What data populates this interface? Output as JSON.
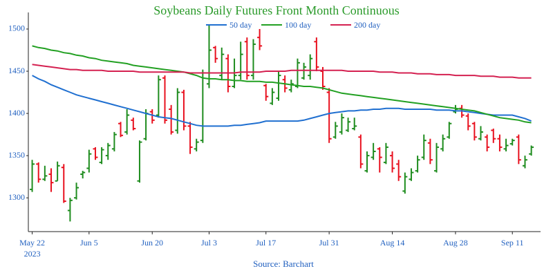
{
  "chart_data": {
    "type": "ohlc",
    "title": "Soybeans Daily Futures Front Month Continuous",
    "source": "Source: Barchart",
    "x": [
      "2023-05-22",
      "2023-05-23",
      "2023-05-24",
      "2023-05-25",
      "2023-05-26",
      "2023-05-30",
      "2023-05-31",
      "2023-06-01",
      "2023-06-02",
      "2023-06-05",
      "2023-06-06",
      "2023-06-07",
      "2023-06-08",
      "2023-06-09",
      "2023-06-12",
      "2023-06-13",
      "2023-06-14",
      "2023-06-15",
      "2023-06-16",
      "2023-06-20",
      "2023-06-21",
      "2023-06-22",
      "2023-06-23",
      "2023-06-26",
      "2023-06-27",
      "2023-06-28",
      "2023-06-29",
      "2023-06-30",
      "2023-07-03",
      "2023-07-05",
      "2023-07-06",
      "2023-07-07",
      "2023-07-10",
      "2023-07-11",
      "2023-07-12",
      "2023-07-13",
      "2023-07-14",
      "2023-07-17",
      "2023-07-18",
      "2023-07-19",
      "2023-07-20",
      "2023-07-21",
      "2023-07-24",
      "2023-07-25",
      "2023-07-26",
      "2023-07-27",
      "2023-07-28",
      "2023-07-31",
      "2023-08-01",
      "2023-08-02",
      "2023-08-03",
      "2023-08-04",
      "2023-08-07",
      "2023-08-08",
      "2023-08-09",
      "2023-08-10",
      "2023-08-11",
      "2023-08-14",
      "2023-08-15",
      "2023-08-16",
      "2023-08-17",
      "2023-08-18",
      "2023-08-21",
      "2023-08-22",
      "2023-08-23",
      "2023-08-24",
      "2023-08-25",
      "2023-08-28",
      "2023-08-29",
      "2023-08-30",
      "2023-08-31",
      "2023-09-01",
      "2023-09-05",
      "2023-09-06",
      "2023-09-07",
      "2023-09-08",
      "2023-09-11",
      "2023-09-12",
      "2023-09-13",
      "2023-09-14"
    ],
    "open": [
      1310,
      1340,
      1322,
      1328,
      1320,
      1336,
      1285,
      1300,
      1328,
      1335,
      1358,
      1342,
      1350,
      1358,
      1388,
      1378,
      1392,
      1320,
      1370,
      1402,
      1398,
      1442,
      1405,
      1380,
      1425,
      1385,
      1358,
      1368,
      1435,
      1478,
      1445,
      1465,
      1432,
      1445,
      1485,
      1445,
      1490,
      1433,
      1412,
      1418,
      1440,
      1428,
      1432,
      1442,
      1445,
      1485,
      1450,
      1425,
      1372,
      1378,
      1380,
      1382,
      1372,
      1332,
      1348,
      1358,
      1342,
      1350,
      1340,
      1308,
      1322,
      1332,
      1348,
      1365,
      1332,
      1358,
      1372,
      1402,
      1406,
      1397,
      1388,
      1370,
      1372,
      1380,
      1370,
      1358,
      1364,
      1372,
      1338,
      1352
    ],
    "high": [
      1345,
      1342,
      1338,
      1335,
      1343,
      1340,
      1300,
      1318,
      1332,
      1357,
      1360,
      1360,
      1365,
      1378,
      1390,
      1405,
      1395,
      1368,
      1405,
      1405,
      1445,
      1445,
      1410,
      1430,
      1428,
      1390,
      1370,
      1452,
      1505,
      1480,
      1478,
      1470,
      1465,
      1485,
      1490,
      1488,
      1500,
      1435,
      1430,
      1450,
      1445,
      1440,
      1465,
      1460,
      1470,
      1490,
      1455,
      1430,
      1390,
      1400,
      1395,
      1395,
      1375,
      1355,
      1365,
      1360,
      1365,
      1355,
      1345,
      1330,
      1335,
      1350,
      1375,
      1370,
      1365,
      1375,
      1390,
      1410,
      1410,
      1400,
      1390,
      1385,
      1375,
      1382,
      1375,
      1370,
      1370,
      1375,
      1350,
      1362
    ],
    "low": [
      1307,
      1318,
      1320,
      1307,
      1320,
      1294,
      1272,
      1298,
      1323,
      1330,
      1345,
      1340,
      1345,
      1355,
      1372,
      1375,
      1380,
      1318,
      1368,
      1388,
      1395,
      1388,
      1375,
      1376,
      1380,
      1352,
      1355,
      1365,
      1430,
      1460,
      1440,
      1425,
      1430,
      1440,
      1440,
      1440,
      1475,
      1415,
      1410,
      1415,
      1425,
      1425,
      1430,
      1440,
      1440,
      1450,
      1428,
      1365,
      1370,
      1375,
      1378,
      1380,
      1335,
      1330,
      1345,
      1330,
      1340,
      1330,
      1320,
      1305,
      1320,
      1330,
      1345,
      1340,
      1330,
      1355,
      1370,
      1400,
      1395,
      1380,
      1368,
      1368,
      1355,
      1365,
      1355,
      1355,
      1362,
      1340,
      1335,
      1350
    ],
    "close": [
      1340,
      1322,
      1326,
      1318,
      1338,
      1296,
      1297,
      1312,
      1330,
      1352,
      1348,
      1357,
      1362,
      1375,
      1374,
      1398,
      1382,
      1366,
      1400,
      1392,
      1440,
      1392,
      1378,
      1425,
      1385,
      1360,
      1366,
      1448,
      1475,
      1465,
      1470,
      1432,
      1445,
      1470,
      1445,
      1482,
      1480,
      1420,
      1425,
      1445,
      1430,
      1435,
      1460,
      1455,
      1465,
      1455,
      1432,
      1370,
      1385,
      1395,
      1390,
      1385,
      1340,
      1350,
      1355,
      1348,
      1360,
      1335,
      1325,
      1325,
      1330,
      1345,
      1368,
      1345,
      1360,
      1370,
      1388,
      1405,
      1398,
      1385,
      1372,
      1378,
      1360,
      1370,
      1360,
      1362,
      1368,
      1345,
      1345,
      1360
    ],
    "up_color": "#1e8c1e",
    "down_color": "#e8101e",
    "series": [
      {
        "name": "50 day",
        "color": "#1f6fd0",
        "values": [
          1445,
          1441,
          1438,
          1434,
          1431,
          1428,
          1425,
          1422,
          1420,
          1418,
          1416,
          1414,
          1412,
          1410,
          1408,
          1406,
          1404,
          1402,
          1400,
          1398,
          1396,
          1395,
          1394,
          1392,
          1390,
          1388,
          1386,
          1385,
          1385,
          1385,
          1385,
          1385,
          1386,
          1386,
          1387,
          1388,
          1389,
          1391,
          1391,
          1391,
          1391,
          1391,
          1391,
          1392,
          1394,
          1396,
          1398,
          1400,
          1401,
          1402,
          1403,
          1403,
          1404,
          1404,
          1405,
          1405,
          1406,
          1406,
          1406,
          1405,
          1405,
          1405,
          1405,
          1405,
          1404,
          1404,
          1404,
          1403,
          1403,
          1402,
          1401,
          1400,
          1399,
          1398,
          1398,
          1398,
          1398,
          1396,
          1394,
          1391
        ]
      },
      {
        "name": "100 day",
        "color": "#22a022",
        "values": [
          1480,
          1478,
          1477,
          1475,
          1474,
          1472,
          1471,
          1469,
          1468,
          1466,
          1465,
          1463,
          1462,
          1461,
          1460,
          1459,
          1457,
          1456,
          1455,
          1454,
          1453,
          1452,
          1451,
          1450,
          1449,
          1447,
          1445,
          1442,
          1441,
          1441,
          1440,
          1440,
          1439,
          1439,
          1438,
          1438,
          1438,
          1437,
          1437,
          1436,
          1435,
          1434,
          1433,
          1432,
          1432,
          1431,
          1430,
          1428,
          1426,
          1424,
          1423,
          1422,
          1421,
          1420,
          1419,
          1418,
          1417,
          1416,
          1415,
          1414,
          1413,
          1412,
          1411,
          1410,
          1409,
          1408,
          1407,
          1406,
          1405,
          1404,
          1403,
          1401,
          1399,
          1397,
          1395,
          1394,
          1393,
          1392,
          1390,
          1389
        ]
      },
      {
        "name": "200 day",
        "color": "#d42050",
        "values": [
          1458,
          1457,
          1456,
          1455,
          1454,
          1453,
          1452,
          1452,
          1451,
          1451,
          1451,
          1451,
          1450,
          1450,
          1450,
          1450,
          1450,
          1449,
          1449,
          1449,
          1449,
          1449,
          1449,
          1449,
          1449,
          1448,
          1448,
          1448,
          1448,
          1448,
          1448,
          1448,
          1448,
          1449,
          1449,
          1449,
          1449,
          1450,
          1450,
          1450,
          1450,
          1451,
          1451,
          1451,
          1451,
          1451,
          1451,
          1451,
          1451,
          1451,
          1450,
          1450,
          1450,
          1450,
          1450,
          1449,
          1449,
          1449,
          1448,
          1448,
          1448,
          1447,
          1447,
          1447,
          1446,
          1446,
          1446,
          1445,
          1445,
          1445,
          1445,
          1444,
          1444,
          1444,
          1443,
          1443,
          1443,
          1442,
          1442,
          1442
        ]
      }
    ],
    "ylim": [
      1260,
      1518
    ],
    "yticks": [
      1300,
      1350,
      1400,
      1450,
      1500
    ],
    "xticks": [
      {
        "value": "2023-05-22",
        "label": "May 22"
      },
      {
        "value": "2023-06-05",
        "label": "Jun 5"
      },
      {
        "value": "2023-06-20",
        "label": "Jun 20"
      },
      {
        "value": "2023-07-03",
        "label": "Jul 3"
      },
      {
        "value": "2023-07-17",
        "label": "Jul 17"
      },
      {
        "value": "2023-07-31",
        "label": "Jul 31"
      },
      {
        "value": "2023-08-14",
        "label": "Aug 14"
      },
      {
        "value": "2023-08-28",
        "label": "Aug 28"
      },
      {
        "value": "2023-09-11",
        "label": "Sep 11"
      }
    ],
    "year_label": "2023",
    "legend": "top",
    "grid": false
  }
}
